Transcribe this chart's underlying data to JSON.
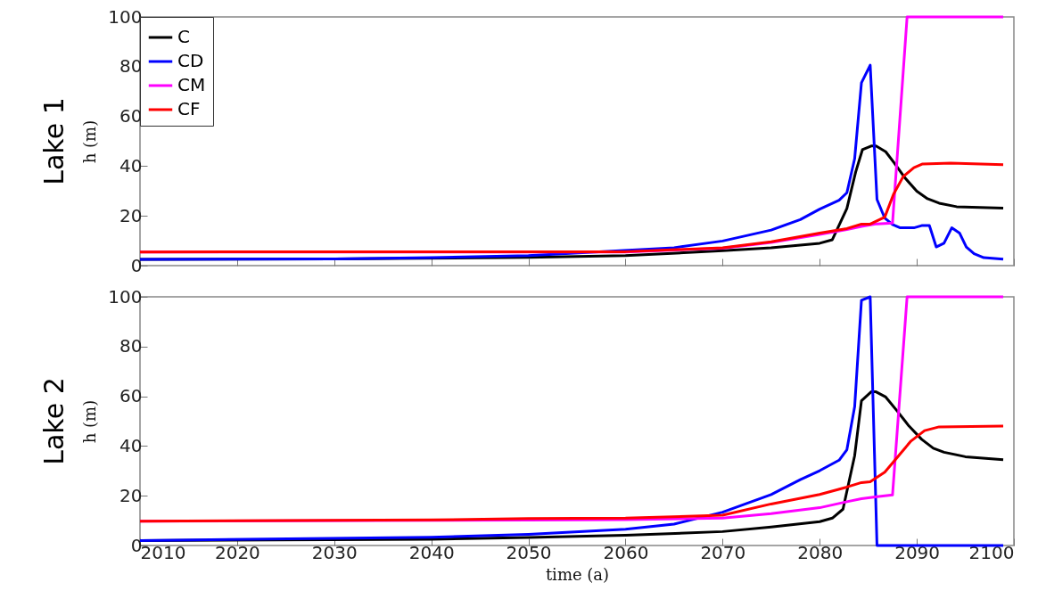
{
  "chart_data": [
    {
      "type": "line",
      "title": "Lake 1",
      "ylabel": "h (m)",
      "xlim": [
        2010,
        2100
      ],
      "xticks": [
        2010,
        2020,
        2030,
        2040,
        2050,
        2060,
        2070,
        2080,
        2090,
        2100
      ],
      "ylim": [
        0,
        100
      ],
      "yticks": [
        0,
        20,
        40,
        60,
        80,
        100
      ],
      "tick_labels": "y",
      "legend": "top left",
      "series": [
        {
          "name": "C",
          "color": "#000000",
          "x": [
            2010,
            2030,
            2050,
            2060,
            2070,
            2075,
            2080,
            2081.3,
            2082.8,
            2083.7,
            2084.4,
            2085.3,
            2085.8,
            2086.8,
            2087.7,
            2088.8,
            2090,
            2091.1,
            2092.3,
            2094.1,
            2098.9
          ],
          "values": [
            2.5,
            2.7,
            3.3,
            4,
            6,
            7.2,
            9,
            10.4,
            23,
            37.6,
            46.6,
            48.1,
            48.1,
            45.8,
            41.2,
            35.2,
            29.9,
            26.9,
            25.1,
            23.7,
            23.1
          ]
        },
        {
          "name": "CD",
          "color": "#0000ff",
          "x": [
            2010,
            2030,
            2040,
            2050,
            2065,
            2070,
            2075,
            2078,
            2080,
            2082,
            2082.8,
            2083.6,
            2084.3,
            2085.2,
            2085.9,
            2086.7,
            2087.5,
            2088.3,
            2089.7,
            2090.5,
            2091.3,
            2092,
            2092.8,
            2093.6,
            2094.4,
            2095.1,
            2095.9,
            2096.9,
            2098.9
          ],
          "values": [
            2.5,
            2.7,
            3.2,
            4,
            7.2,
            9.9,
            14.3,
            18.5,
            22.7,
            26.3,
            29.3,
            43,
            73.5,
            80.6,
            26.6,
            19.1,
            16.5,
            15.2,
            15.2,
            16.1,
            16.1,
            7.5,
            9,
            15.2,
            13.1,
            7.5,
            4.8,
            3.2,
            2.6
          ]
        },
        {
          "name": "CM",
          "color": "#ff00ff",
          "x": [
            2010,
            2060,
            2070,
            2075,
            2080,
            2082.8,
            2084.3,
            2085.9,
            2087.5,
            2089,
            2098.9
          ],
          "values": [
            5.5,
            5.5,
            7,
            9.3,
            12.5,
            14.5,
            15.8,
            16.8,
            17.1,
            100,
            100
          ]
        },
        {
          "name": "CF",
          "color": "#ff0000",
          "x": [
            2010,
            2060,
            2070,
            2075,
            2080,
            2082.8,
            2084.3,
            2085.2,
            2086.7,
            2087.6,
            2088.6,
            2089.7,
            2090.6,
            2093.5,
            2098.9
          ],
          "values": [
            5.5,
            5.6,
            7.2,
            9.6,
            13.1,
            14.9,
            16.7,
            16.7,
            19.5,
            28.7,
            35.8,
            39.4,
            40.9,
            41.2,
            40.6
          ]
        }
      ]
    },
    {
      "type": "line",
      "title": "Lake 2",
      "xlabel": "time (a)",
      "ylabel": "h (m)",
      "xlim": [
        2010,
        2100
      ],
      "xticks": [
        2010,
        2020,
        2030,
        2040,
        2050,
        2060,
        2070,
        2080,
        2090,
        2100
      ],
      "ylim": [
        0,
        100
      ],
      "yticks": [
        0,
        20,
        40,
        60,
        80,
        100
      ],
      "series": [
        {
          "color": "#000000",
          "x": [
            2010,
            2040,
            2050,
            2060,
            2070,
            2075,
            2080,
            2081.3,
            2082.4,
            2083.6,
            2084.3,
            2085.3,
            2085.8,
            2086.8,
            2088,
            2089.2,
            2090.5,
            2091.7,
            2092.8,
            2095,
            2098.9
          ],
          "values": [
            2,
            2.5,
            3.2,
            4.1,
            5.6,
            7.4,
            9.6,
            11,
            14.6,
            36.1,
            58.2,
            61.8,
            61.8,
            59.7,
            54,
            48,
            42.7,
            39.1,
            37.5,
            35.7,
            34.5
          ]
        },
        {
          "color": "#0000ff",
          "x": [
            2010,
            2040,
            2050,
            2060,
            2065,
            2070,
            2075,
            2078,
            2080,
            2082,
            2082.8,
            2083.6,
            2084.3,
            2085.2,
            2085.9,
            2098.9
          ],
          "values": [
            2,
            3.3,
            4.5,
            6.5,
            8.6,
            13.4,
            20.5,
            26.5,
            30.1,
            34.3,
            38.5,
            55.8,
            98.6,
            100,
            0,
            0
          ]
        },
        {
          "color": "#ff00ff",
          "x": [
            2010,
            2050,
            2060,
            2070,
            2075,
            2080,
            2082.8,
            2084.3,
            2085.9,
            2087.5,
            2089,
            2098.9
          ],
          "values": [
            9.8,
            10.2,
            10.4,
            11,
            12.8,
            15.2,
            17.6,
            18.8,
            19.6,
            20.3,
            100,
            100
          ]
        },
        {
          "color": "#ff0000",
          "x": [
            2010,
            2040,
            2050,
            2060,
            2070,
            2075,
            2080,
            2082.8,
            2084.3,
            2085.2,
            2086.7,
            2088,
            2089.4,
            2090.8,
            2092.3,
            2098.9
          ],
          "values": [
            9.8,
            10.3,
            10.8,
            11,
            12.2,
            16.7,
            20.5,
            23.5,
            25.3,
            25.6,
            29.5,
            35.5,
            42,
            46.2,
            47.7,
            48
          ]
        }
      ]
    }
  ]
}
